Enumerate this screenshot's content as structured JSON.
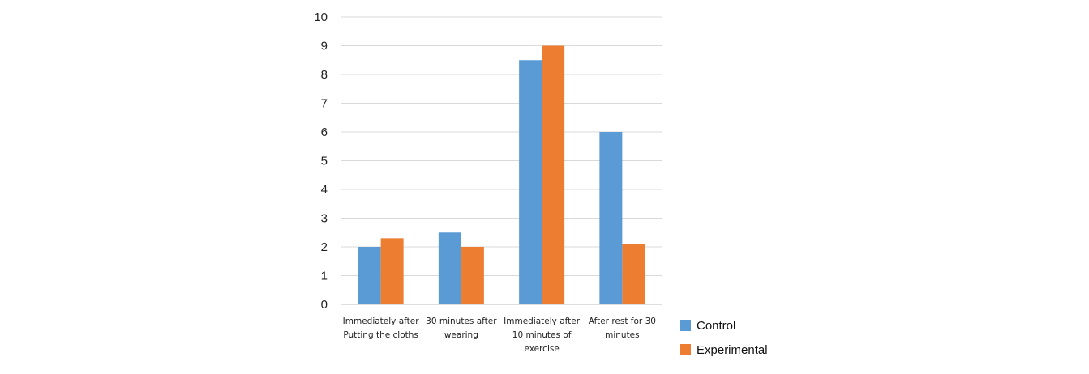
{
  "chart_data": {
    "type": "bar",
    "title": "",
    "xlabel": "",
    "ylabel": "",
    "categories": [
      [
        "Immediately after",
        "Putting the cloths"
      ],
      [
        "30 minutes after",
        "wearing"
      ],
      [
        "Immediately after",
        "10 minutes of",
        "exercise"
      ],
      [
        "After rest for 30",
        "minutes"
      ]
    ],
    "series": [
      {
        "name": "Control",
        "color": "#5B9BD5",
        "values": [
          2,
          2.5,
          8.5,
          6
        ]
      },
      {
        "name": "Experimental",
        "color": "#ED7D31",
        "values": [
          2.3,
          2,
          9,
          2.1
        ]
      }
    ],
    "ylim": [
      0,
      10
    ],
    "yticks": [
      "0",
      "1",
      "2",
      "3",
      "4",
      "5",
      "6",
      "7",
      "8",
      "9",
      "10"
    ],
    "grid": true,
    "legend_position": "right-bottom"
  }
}
